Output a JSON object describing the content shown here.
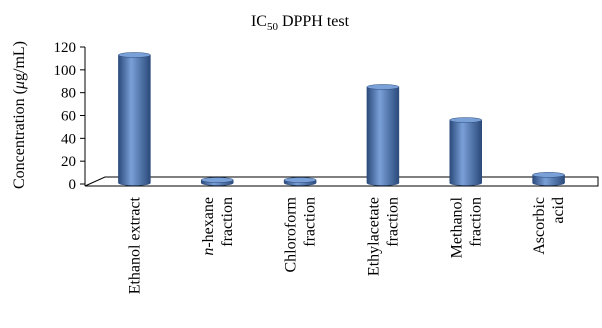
{
  "chart_data": {
    "type": "bar",
    "title": {
      "main": "IC",
      "sub": "50",
      "rest": " DPPH test"
    },
    "ylabel": {
      "prefix": "Concentration (",
      "mu": "μ",
      "suffix": "g/mL)"
    },
    "xlabel": "",
    "ylim": [
      0,
      120
    ],
    "yticks": [
      "0",
      "20",
      "40",
      "60",
      "80",
      "100",
      "120"
    ],
    "categories": [
      {
        "name": "ethanol-extract",
        "lines": [
          {
            "prefix": "",
            "italic": "",
            "text": "Ethanol extract"
          }
        ]
      },
      {
        "name": "n-hexane-fraction",
        "lines": [
          {
            "prefix": "",
            "italic": "n",
            "text": "-hexane"
          },
          {
            "prefix": "",
            "italic": "",
            "text": "fraction"
          }
        ]
      },
      {
        "name": "chloroform-fraction",
        "lines": [
          {
            "prefix": "",
            "italic": "",
            "text": "Chloroform"
          },
          {
            "prefix": "",
            "italic": "",
            "text": "fraction"
          }
        ]
      },
      {
        "name": "ethylacetate-fraction",
        "lines": [
          {
            "prefix": "",
            "italic": "",
            "text": "Ethylacetate"
          },
          {
            "prefix": "",
            "italic": "",
            "text": "fraction"
          }
        ]
      },
      {
        "name": "methanol-fraction",
        "lines": [
          {
            "prefix": "",
            "italic": "",
            "text": "Methanol"
          },
          {
            "prefix": "",
            "italic": "",
            "text": "fraction"
          }
        ]
      },
      {
        "name": "ascorbic-acid",
        "lines": [
          {
            "prefix": "",
            "italic": "",
            "text": "Ascorbic"
          },
          {
            "prefix": "",
            "italic": "",
            "text": "acid"
          }
        ]
      }
    ],
    "values": [
      113,
      0,
      0,
      85,
      56,
      8
    ],
    "bar_color": "#4a74b0",
    "bar_dark": "#2a4a7a",
    "bar_light": "#7aa0d8",
    "grid": false,
    "legend": "none"
  }
}
